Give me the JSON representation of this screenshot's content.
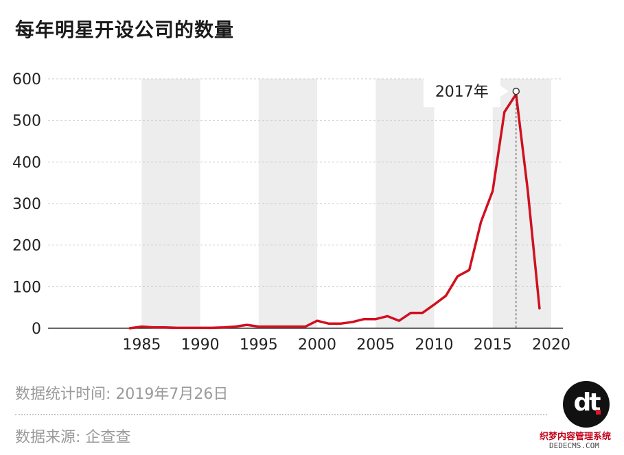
{
  "title": "每年明星开设公司的数量",
  "chart_data": {
    "type": "line",
    "x": [
      1984,
      1985,
      1986,
      1987,
      1988,
      1989,
      1990,
      1991,
      1992,
      1993,
      1994,
      1995,
      1996,
      1997,
      1998,
      1999,
      2000,
      2001,
      2002,
      2003,
      2004,
      2005,
      2006,
      2007,
      2008,
      2009,
      2010,
      2011,
      2012,
      2013,
      2014,
      2015,
      2016,
      2017,
      2018,
      2019
    ],
    "series": [
      {
        "values": [
          0,
          4,
          2,
          2,
          1,
          1,
          1,
          1,
          2,
          4,
          8,
          4,
          4,
          4,
          4,
          4,
          18,
          11,
          11,
          15,
          22,
          22,
          29,
          18,
          37,
          37,
          57,
          78,
          125,
          140,
          256,
          330,
          520,
          563,
          330,
          48
        ]
      }
    ],
    "xlim": [
      1977,
      2021
    ],
    "ylim": [
      0,
      600
    ],
    "xticks": [
      1985,
      1990,
      1995,
      2000,
      2005,
      2010,
      2015,
      2020
    ],
    "yticks": [
      0,
      100,
      200,
      300,
      400,
      500,
      600
    ],
    "shaded_bands": [
      [
        1985,
        1990
      ],
      [
        1995,
        2000
      ],
      [
        2005,
        2010
      ],
      [
        2015,
        2020
      ]
    ],
    "grid": true,
    "annotation": {
      "x": 2017,
      "y": 570,
      "label": "2017年"
    },
    "line_color": "#d0101f"
  },
  "notes": {
    "stat_time": "数据统计时间: 2019年7月26日",
    "source": "数据来源: 企查查"
  },
  "logo": {
    "text": "dt"
  },
  "watermark": {
    "text": "织梦内容管理系统",
    "url": "DEDECMS.COM"
  }
}
